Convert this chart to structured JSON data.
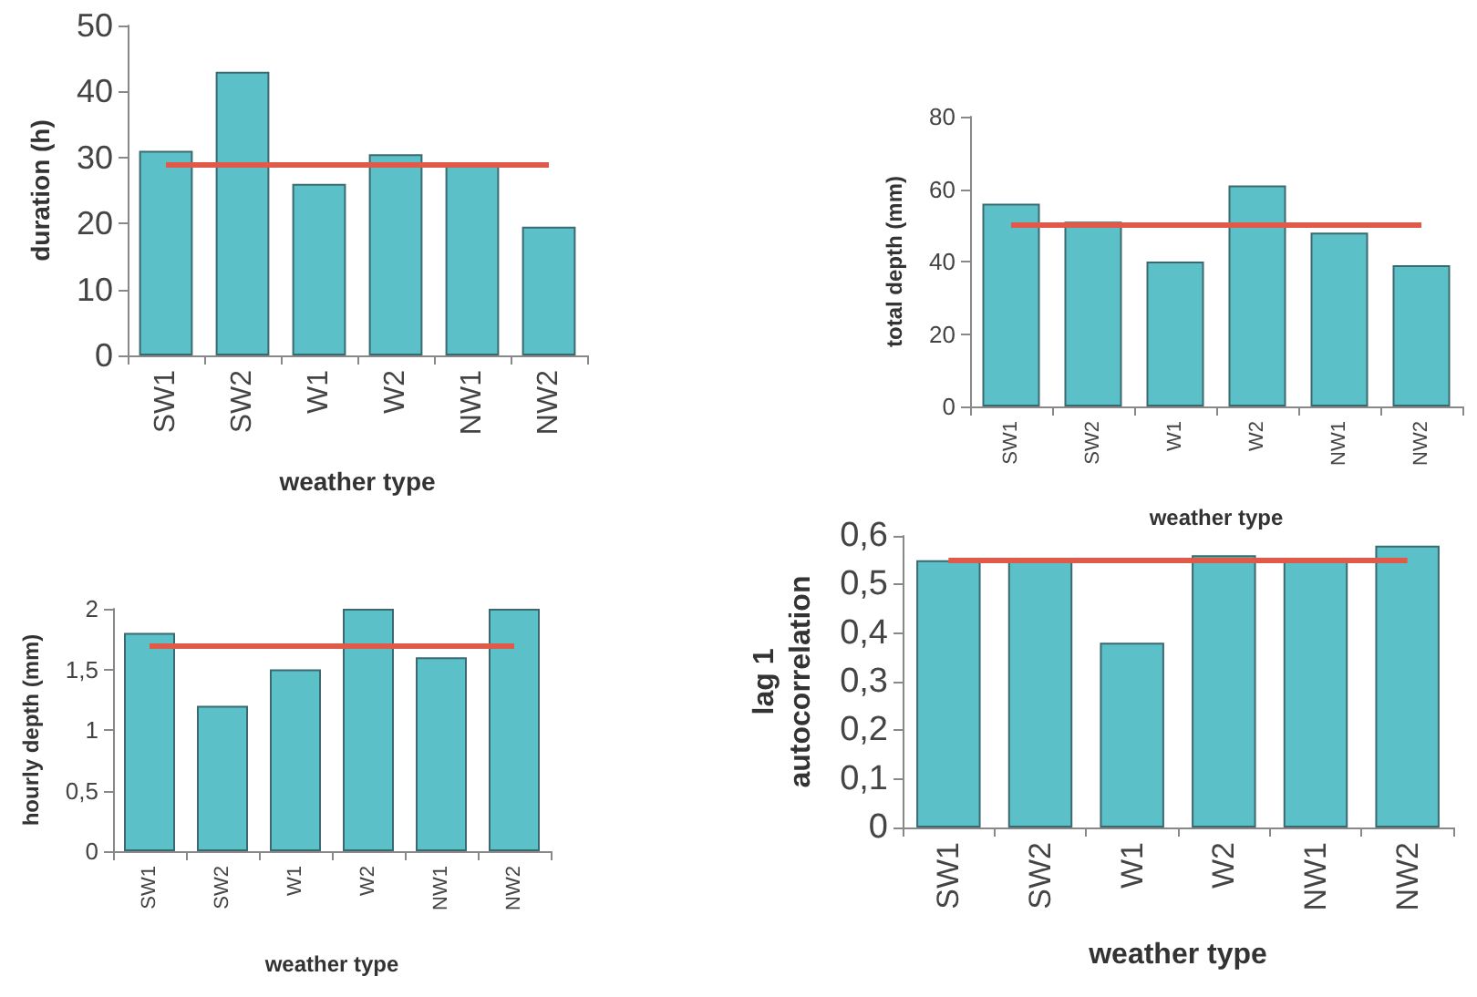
{
  "chart_data": [
    {
      "type": "bar",
      "xlabel": "weather type",
      "ylabel": "duration (h)",
      "categories": [
        "SW1",
        "SW2",
        "W1",
        "W2",
        "NW1",
        "NW2"
      ],
      "values": [
        31,
        43,
        26,
        30.5,
        29,
        19.5
      ],
      "color": "#5cc0c9",
      "ylim": [
        0,
        50
      ],
      "yticks": [
        0,
        10,
        20,
        30,
        40,
        50
      ],
      "ref_lines": [
        {
          "axis": "y",
          "value": 29,
          "color": "#e05a4a"
        }
      ]
    },
    {
      "type": "bar",
      "xlabel": "weather type",
      "ylabel": "total depth (mm)",
      "categories": [
        "SW1",
        "SW2",
        "W1",
        "W2",
        "NW1",
        "NW2"
      ],
      "values": [
        56,
        51,
        40,
        61,
        48,
        39
      ],
      "color": "#5cc0c9",
      "ylim": [
        0,
        80
      ],
      "yticks": [
        0,
        20,
        40,
        60,
        80
      ],
      "ref_lines": [
        {
          "axis": "y",
          "value": 50,
          "color": "#e05a4a"
        }
      ]
    },
    {
      "type": "bar",
      "xlabel": "weather type",
      "ylabel": "hourly depth (mm)",
      "categories": [
        "SW1",
        "SW2",
        "W1",
        "W2",
        "NW1",
        "NW2"
      ],
      "values": [
        1.8,
        1.2,
        1.5,
        2.0,
        1.6,
        2.0
      ],
      "color": "#5cc0c9",
      "ylim": [
        0,
        2
      ],
      "yticks": [
        0,
        {
          "value": 0.5,
          "label": "0,5"
        },
        1,
        {
          "value": 1.5,
          "label": "1,5"
        },
        2
      ],
      "ref_lines": [
        {
          "axis": "y",
          "value": 1.7,
          "color": "#e05a4a"
        }
      ]
    },
    {
      "type": "bar",
      "xlabel": "weather type",
      "ylabel": "lag 1\nautocorrelation",
      "categories": [
        "SW1",
        "SW2",
        "W1",
        "W2",
        "NW1",
        "NW2"
      ],
      "values": [
        0.55,
        0.55,
        0.38,
        0.56,
        0.55,
        0.58
      ],
      "color": "#5cc0c9",
      "ylim": [
        0,
        0.6
      ],
      "yticks": [
        0,
        {
          "value": 0.1,
          "label": "0,1"
        },
        {
          "value": 0.2,
          "label": "0,2"
        },
        {
          "value": 0.3,
          "label": "0,3"
        },
        {
          "value": 0.4,
          "label": "0,4"
        },
        {
          "value": 0.5,
          "label": "0,5"
        },
        {
          "value": 0.6,
          "label": "0,6"
        }
      ],
      "ref_lines": [
        {
          "axis": "y",
          "value": 0.55,
          "color": "#e05a4a"
        }
      ]
    }
  ]
}
